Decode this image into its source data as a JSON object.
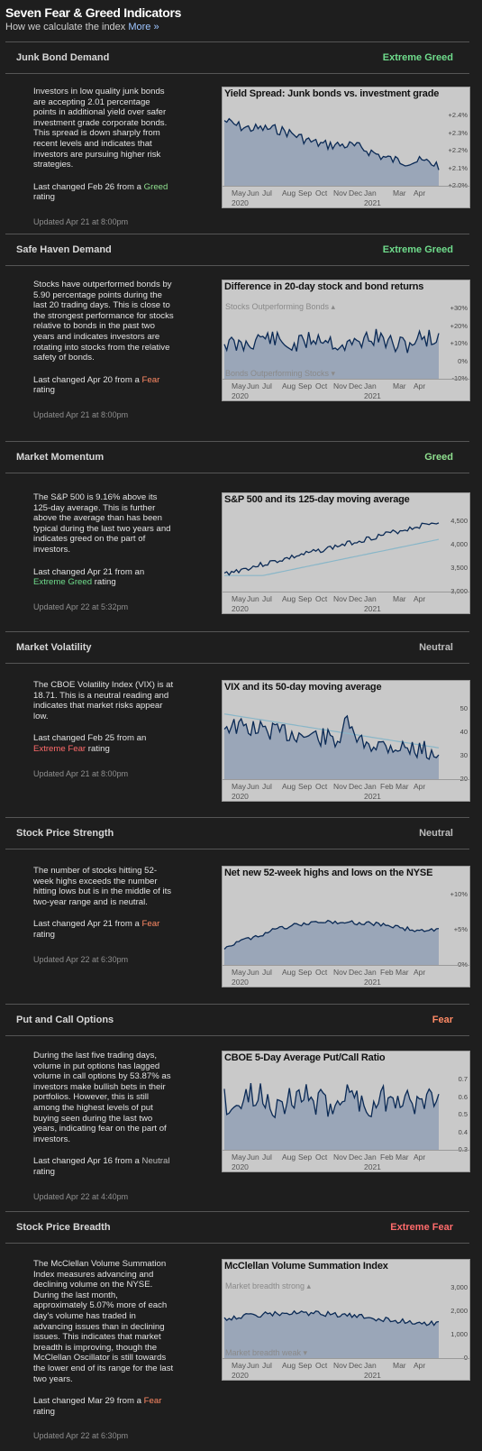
{
  "header": {
    "title": "Seven Fear & Greed Indicators",
    "subtitle": "How we calculate the index",
    "more_link": "More »"
  },
  "colors": {
    "extreme_greed": "#6fdc8c",
    "greed": "#8fe08f",
    "neutral": "#bdbdbd",
    "fear": "#ff8a65",
    "extreme_fear": "#ff6b6b",
    "chart_fill": "#9aa6b8",
    "chart_line": "#0b2a55",
    "ma_line": "#89b6c8"
  },
  "indicators": [
    {
      "title": "Junk Bond Demand",
      "rating": "Extreme Greed",
      "rating_color": "#6fdc8c",
      "description": "Investors in low quality junk bonds are accepting 2.01 percentage points in additional yield over safer investment grade corporate bonds. This spread is down sharply from recent levels and indicates that investors are pursuing higher risk strategies.",
      "last_changed_prefix": "Last changed Feb 26 from a",
      "last_changed_rating": "Greed",
      "last_changed_rating_color": "#8fe08f",
      "last_changed_suffix": "rating",
      "updated": "Updated Apr 21 at 8:00pm",
      "chart_title": "Yield Spread: Junk bonds vs. investment grade",
      "ticks": [
        "+2.4%",
        "+2.3%",
        "+2.2%",
        "+2.1%",
        "+2.0%"
      ],
      "months": [
        "May",
        "Jun",
        "Jul",
        "Aug",
        "Sep",
        "Oct",
        "Nov",
        "Dec",
        "Jan",
        "Mar",
        "Apr"
      ],
      "years": [
        "2020",
        "2021"
      ]
    },
    {
      "title": "Safe Haven Demand",
      "rating": "Extreme Greed",
      "rating_color": "#6fdc8c",
      "description": "Stocks have outperformed bonds by 5.90 percentage points during the last 20 trading days. This is close to the strongest performance for stocks relative to bonds in the past two years and indicates investors are rotating into stocks from the relative safety of bonds.",
      "last_changed_prefix": "Last changed Apr 20 from a",
      "last_changed_rating": "Fear",
      "last_changed_rating_color": "#ff8a65",
      "last_changed_suffix": "rating",
      "updated": "Updated Apr 21 at 8:00pm",
      "chart_title": "Difference in 20-day stock and bond returns",
      "band_top": "Stocks Outperforming Bonds ▴",
      "band_bottom": "Bonds Outperforming Stocks ▾",
      "ticks": [
        "+30%",
        "+20%",
        "+10%",
        "0%",
        "-10%"
      ],
      "months": [
        "May",
        "Jun",
        "Jul",
        "Aug",
        "Sep",
        "Oct",
        "Nov",
        "Dec",
        "Jan",
        "Mar",
        "Apr"
      ],
      "years": [
        "2020",
        "2021"
      ]
    },
    {
      "title": "Market Momentum",
      "rating": "Greed",
      "rating_color": "#8fe08f",
      "description": "The S&P 500 is 9.16% above its 125-day average. This is further above the average than has been typical during the last two years and indicates greed on the part of investors.",
      "last_changed_prefix": "Last changed Apr 21 from an",
      "last_changed_rating": "Extreme Greed",
      "last_changed_rating_color": "#6fdc8c",
      "last_changed_suffix": "rating",
      "updated": "Updated Apr 22 at 5:32pm",
      "chart_title": "S&P 500 and its 125-day moving average",
      "ticks": [
        "4,500",
        "4,000",
        "3,500",
        "3,000"
      ],
      "months": [
        "May",
        "Jun",
        "Jul",
        "Aug",
        "Sep",
        "Oct",
        "Nov",
        "Dec",
        "Jan",
        "Mar",
        "Apr"
      ],
      "years": [
        "2020",
        "2021"
      ]
    },
    {
      "title": "Market Volatility",
      "rating": "Neutral",
      "rating_color": "#bdbdbd",
      "description": "The CBOE Volatility Index (VIX) is at 18.71. This is a neutral reading and indicates that market risks appear low.",
      "last_changed_prefix": "Last changed Feb 25 from an",
      "last_changed_rating": "Extreme Fear",
      "last_changed_rating_color": "#ff6b6b",
      "last_changed_suffix": "rating",
      "updated": "Updated Apr 21 at 8:00pm",
      "chart_title": "VIX and its 50-day moving average",
      "ticks": [
        "50",
        "40",
        "30",
        "20"
      ],
      "months": [
        "May",
        "Jun",
        "Jul",
        "Aug",
        "Sep",
        "Oct",
        "Nov",
        "Dec",
        "Jan",
        "Feb",
        "Mar",
        "Apr"
      ],
      "years": [
        "2020",
        "2021"
      ]
    },
    {
      "title": "Stock Price Strength",
      "rating": "Neutral",
      "rating_color": "#bdbdbd",
      "description": "The number of stocks hitting 52-week highs exceeds the number hitting lows but is in the middle of its two-year range and is neutral.",
      "last_changed_prefix": "Last changed Apr 21 from a",
      "last_changed_rating": "Fear",
      "last_changed_rating_color": "#ff8a65",
      "last_changed_suffix": "rating",
      "updated": "Updated Apr 22 at 6:30pm",
      "chart_title": "Net new 52-week highs and lows on the NYSE",
      "ticks": [
        "+10%",
        "+5%",
        "0%"
      ],
      "months": [
        "May",
        "Jun",
        "Jul",
        "Aug",
        "Sep",
        "Oct",
        "Nov",
        "Dec",
        "Jan",
        "Feb",
        "Mar",
        "Apr"
      ],
      "years": [
        "2020",
        "2021"
      ]
    },
    {
      "title": "Put and Call Options",
      "rating": "Fear",
      "rating_color": "#ff8a65",
      "description": "During the last five trading days, volume in put options has lagged volume in call options by 53.87% as investors make bullish bets in their portfolios. However, this is still among the highest levels of put buying seen during the last two years, indicating fear on the part of investors.",
      "last_changed_prefix": "Last changed Apr 16 from a",
      "last_changed_rating": "Neutral",
      "last_changed_rating_color": "#bdbdbd",
      "last_changed_suffix": "rating",
      "updated": "Updated Apr 22 at 4:40pm",
      "chart_title": "CBOE 5-Day Average Put/Call Ratio",
      "ticks": [
        "0.7",
        "0.6",
        "0.5",
        "0.4",
        "0.3"
      ],
      "months": [
        "May",
        "Jun",
        "Jul",
        "Aug",
        "Sep",
        "Oct",
        "Nov",
        "Dec",
        "Jan",
        "Feb",
        "Mar",
        "Apr"
      ],
      "years": [
        "2020",
        "2021"
      ]
    },
    {
      "title": "Stock Price Breadth",
      "rating": "Extreme Fear",
      "rating_color": "#ff6b6b",
      "description": "The McClellan Volume Summation Index measures advancing and declining volume on the NYSE. During the last month, approximately 5.07% more of each day's volume has traded in advancing issues than in declining issues. This indicates that market breadth is improving, though the McClellan Oscillator is still towards the lower end of its range for the last two years.",
      "last_changed_prefix": "Last changed Mar 29 from a",
      "last_changed_rating": "Fear",
      "last_changed_rating_color": "#ff8a65",
      "last_changed_suffix": "rating",
      "updated": "Updated Apr 22 at 6:30pm",
      "chart_title": "McClellan Volume Summation Index",
      "band_top": "Market breadth strong ▴",
      "band_bottom": "Market breadth weak ▾",
      "ticks": [
        "3,000",
        "2,000",
        "1,000",
        "0"
      ],
      "months": [
        "May",
        "Jun",
        "Jul",
        "Aug",
        "Sep",
        "Oct",
        "Nov",
        "Dec",
        "Jan",
        "Mar",
        "Apr"
      ],
      "years": [
        "2020",
        "2021"
      ]
    }
  ]
}
